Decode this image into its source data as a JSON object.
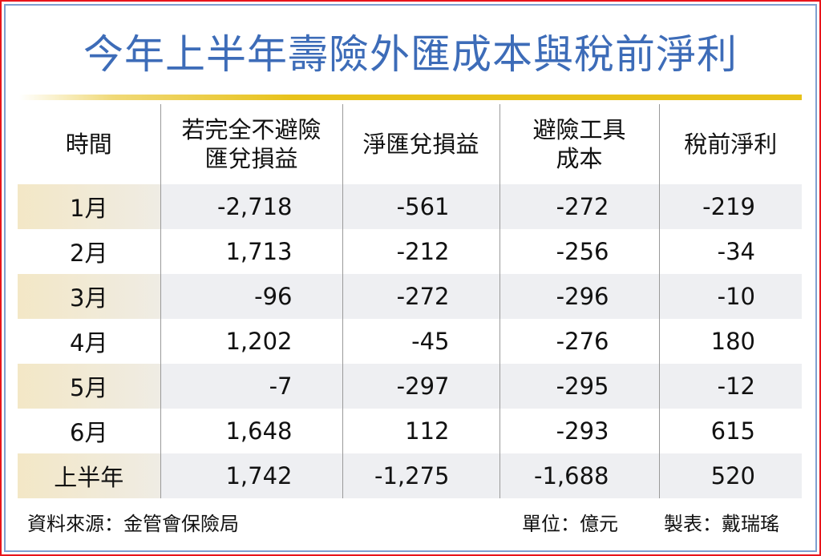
{
  "title": "今年上半年壽險外匯成本與稅前淨利",
  "chart_data": {
    "type": "table",
    "title": "今年上半年壽險外匯成本與稅前淨利",
    "columns": [
      "時間",
      "若完全不避險\n匯兌損益",
      "淨匯兌損益",
      "避險工具\n成本",
      "稅前淨利"
    ],
    "column_lines": [
      [
        "時間"
      ],
      [
        "若完全不避險",
        "匯兌損益"
      ],
      [
        "淨匯兌損益"
      ],
      [
        "避險工具",
        "成本"
      ],
      [
        "稅前淨利"
      ]
    ],
    "rows": [
      [
        "1月",
        "-2,718",
        "-561",
        "-272",
        "-219"
      ],
      [
        "2月",
        "1,713",
        "-212",
        "-256",
        "-34"
      ],
      [
        "3月",
        "-96",
        "-272",
        "-296",
        "-10"
      ],
      [
        "4月",
        "1,202",
        "-45",
        "-276",
        "180"
      ],
      [
        "5月",
        "-7",
        "-297",
        "-295",
        "-12"
      ],
      [
        "6月",
        "1,648",
        "112",
        "-293",
        "615"
      ],
      [
        "上半年",
        "1,742",
        "-1,275",
        "-1,688",
        "520"
      ]
    ]
  },
  "footer": {
    "source": "資料來源：金管會保險局",
    "unit": "單位：億元",
    "author": "製表：戴瑞瑤"
  },
  "colors": {
    "title": "#3d6cb8",
    "border_outer": "#e8141b",
    "border_inner": "#7f9fd0",
    "rule": "#e8c21a",
    "row_shade": "#eeeff2"
  }
}
